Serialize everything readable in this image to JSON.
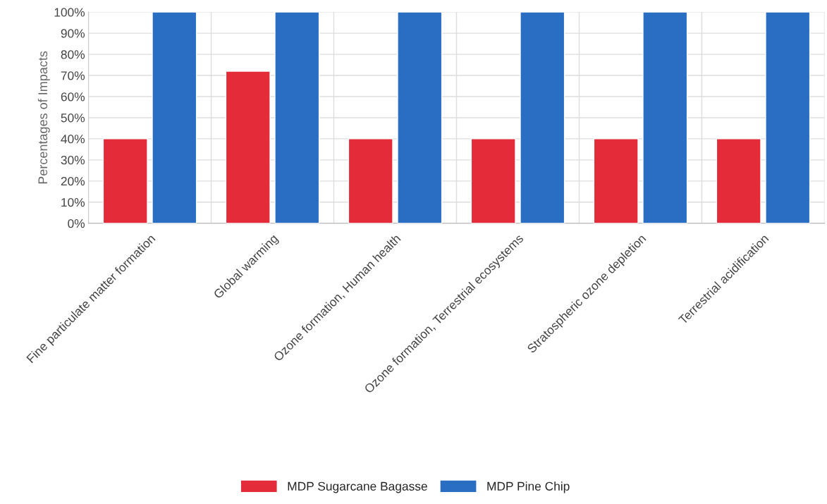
{
  "chart_data": {
    "type": "bar",
    "ylabel": "Percentages of Impacts",
    "categories": [
      "Fine particulate matter formation",
      "Global warming",
      "Ozone formation, Human health",
      "Ozone formation, Terrestrial ecosystems",
      "Stratospheric ozone depletion",
      "Terrestrial acidification"
    ],
    "series": [
      {
        "name": "MDP Sugarcane Bagasse",
        "color": "#e32b39",
        "values": [
          40,
          72,
          40,
          40,
          40,
          40
        ]
      },
      {
        "name": "MDP Pine Chip",
        "color": "#2a6ec4",
        "values": [
          100,
          100,
          100,
          100,
          100,
          100
        ]
      }
    ],
    "ylim": [
      0,
      100
    ],
    "yticks": [
      {
        "value": 0,
        "label": "0%"
      },
      {
        "value": 10,
        "label": "10%"
      },
      {
        "value": 20,
        "label": "20%"
      },
      {
        "value": 30,
        "label": "30%"
      },
      {
        "value": 40,
        "label": "40%"
      },
      {
        "value": 50,
        "label": "50%"
      },
      {
        "value": 60,
        "label": "60%"
      },
      {
        "value": 70,
        "label": "70%"
      },
      {
        "value": 80,
        "label": "80%"
      },
      {
        "value": 90,
        "label": "90%"
      },
      {
        "value": 100,
        "label": "100%"
      }
    ],
    "grid": true,
    "legend": "bottom"
  }
}
